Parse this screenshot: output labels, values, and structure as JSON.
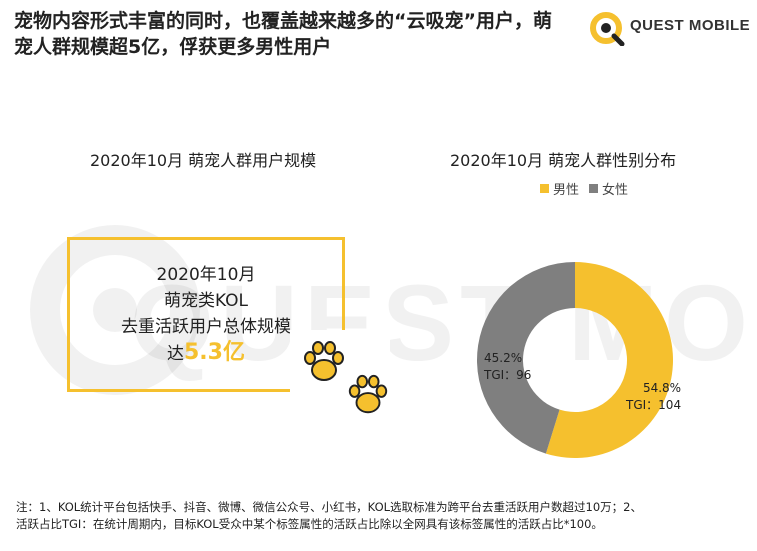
{
  "headline": {
    "line1": "宠物内容形式丰富的同时，也覆盖越来越多的“云吸宠”用户，萌",
    "line2": "宠人群规模超5亿，俘获更多男性用户"
  },
  "logo": {
    "text": "QUEST MOBILE"
  },
  "watermark": {
    "text": "QUEST MOBILE"
  },
  "left_panel": {
    "title": "2020年10月  萌宠人群用户规模",
    "box_line1": "2020年10月",
    "box_line2": "萌宠类KOL",
    "box_line3": "去重活跃用户总体规模",
    "box_prefix": "达",
    "box_value": "5.3",
    "box_unit": "亿"
  },
  "right_panel": {
    "title": "2020年10月  萌宠人群性别分布",
    "legend": [
      "男性",
      "女性"
    ]
  },
  "chart_data": {
    "type": "pie",
    "title": "2020年10月  萌宠人群性别分布",
    "categories": [
      "男性",
      "女性"
    ],
    "values": [
      54.8,
      45.2
    ],
    "value_labels": [
      "54.8%",
      "45.2%"
    ],
    "tgi_labels": [
      "TGI：104",
      "TGI：96"
    ],
    "colors": [
      "#F5C02E",
      "#7F7F7F"
    ],
    "donut": true,
    "legend_position": "top"
  },
  "footnote": {
    "line1": "注：1、KOL统计平台包括快手、抖音、微博、微信公众号、小红书，KOL选取标准为跨平台去重活跃用户数超过10万；2、",
    "line2": "活跃占比TGI：在统计周期内，目标KOL受众中某个标签属性的活跃占比除以全网具有该标签属性的活跃占比*100。"
  }
}
